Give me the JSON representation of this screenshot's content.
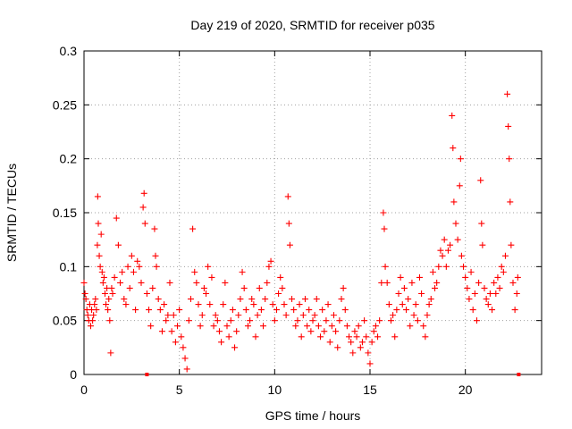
{
  "chart_data": {
    "type": "scatter",
    "title": "Day 219 of 2020, SRMTID for receiver p035",
    "xlabel": "GPS time / hours",
    "ylabel": "SRMTID / TECUs",
    "xlim": [
      0,
      24
    ],
    "ylim": [
      0,
      0.3
    ],
    "x_ticks": [
      0,
      5,
      10,
      15,
      20
    ],
    "y_ticks": [
      0,
      0.05,
      0.1,
      0.15,
      0.2,
      0.25,
      0.3
    ],
    "x_tick_labels": [
      "0",
      "5",
      "10",
      "15",
      "20"
    ],
    "y_tick_labels": [
      "0",
      "0.05",
      "0.1",
      "0.15",
      "0.2",
      "0.25",
      "0.3"
    ],
    "grid": true,
    "marker": "plus",
    "color": "#ff0000",
    "series": [
      {
        "name": "SRMTID",
        "points": [
          [
            0.0,
            0.085
          ],
          [
            0.05,
            0.075
          ],
          [
            0.1,
            0.07
          ],
          [
            0.15,
            0.06
          ],
          [
            0.2,
            0.055
          ],
          [
            0.25,
            0.05
          ],
          [
            0.3,
            0.065
          ],
          [
            0.35,
            0.045
          ],
          [
            0.4,
            0.06
          ],
          [
            0.45,
            0.05
          ],
          [
            0.5,
            0.055
          ],
          [
            0.55,
            0.065
          ],
          [
            0.6,
            0.07
          ],
          [
            0.65,
            0.06
          ],
          [
            0.7,
            0.12
          ],
          [
            0.72,
            0.165
          ],
          [
            0.75,
            0.14
          ],
          [
            0.8,
            0.11
          ],
          [
            0.85,
            0.1
          ],
          [
            0.9,
            0.13
          ],
          [
            0.95,
            0.095
          ],
          [
            1.0,
            0.085
          ],
          [
            1.05,
            0.09
          ],
          [
            1.1,
            0.075
          ],
          [
            1.15,
            0.065
          ],
          [
            1.2,
            0.08
          ],
          [
            1.25,
            0.06
          ],
          [
            1.3,
            0.07
          ],
          [
            1.35,
            0.05
          ],
          [
            1.4,
            0.02
          ],
          [
            1.45,
            0.08
          ],
          [
            1.5,
            0.075
          ],
          [
            1.6,
            0.09
          ],
          [
            1.7,
            0.145
          ],
          [
            1.8,
            0.12
          ],
          [
            1.9,
            0.085
          ],
          [
            2.0,
            0.095
          ],
          [
            2.1,
            0.07
          ],
          [
            2.2,
            0.065
          ],
          [
            2.3,
            0.1
          ],
          [
            2.4,
            0.08
          ],
          [
            2.5,
            0.11
          ],
          [
            2.6,
            0.095
          ],
          [
            2.7,
            0.06
          ],
          [
            2.8,
            0.105
          ],
          [
            2.9,
            0.1
          ],
          [
            3.0,
            0.085
          ],
          [
            3.1,
            0.155
          ],
          [
            3.15,
            0.168
          ],
          [
            3.2,
            0.14
          ],
          [
            3.3,
            0.075
          ],
          [
            3.4,
            0.06
          ],
          [
            3.5,
            0.045
          ],
          [
            3.6,
            0.08
          ],
          [
            3.7,
            0.135
          ],
          [
            3.75,
            0.11
          ],
          [
            3.8,
            0.1
          ],
          [
            3.9,
            0.07
          ],
          [
            4.0,
            0.06
          ],
          [
            4.1,
            0.04
          ],
          [
            4.2,
            0.065
          ],
          [
            4.3,
            0.05
          ],
          [
            4.4,
            0.055
          ],
          [
            4.5,
            0.085
          ],
          [
            4.6,
            0.04
          ],
          [
            4.7,
            0.055
          ],
          [
            4.8,
            0.03
          ],
          [
            4.9,
            0.045
          ],
          [
            5.0,
            0.06
          ],
          [
            5.1,
            0.035
          ],
          [
            5.2,
            0.025
          ],
          [
            5.3,
            0.015
          ],
          [
            5.4,
            0.005
          ],
          [
            5.5,
            0.05
          ],
          [
            5.6,
            0.07
          ],
          [
            5.7,
            0.135
          ],
          [
            5.8,
            0.095
          ],
          [
            5.9,
            0.085
          ],
          [
            6.0,
            0.065
          ],
          [
            6.1,
            0.045
          ],
          [
            6.2,
            0.055
          ],
          [
            6.3,
            0.08
          ],
          [
            6.4,
            0.075
          ],
          [
            6.5,
            0.1
          ],
          [
            6.6,
            0.065
          ],
          [
            6.7,
            0.09
          ],
          [
            6.8,
            0.045
          ],
          [
            6.9,
            0.055
          ],
          [
            7.0,
            0.05
          ],
          [
            7.1,
            0.04
          ],
          [
            7.2,
            0.03
          ],
          [
            7.3,
            0.065
          ],
          [
            7.4,
            0.085
          ],
          [
            7.5,
            0.045
          ],
          [
            7.6,
            0.035
          ],
          [
            7.7,
            0.05
          ],
          [
            7.8,
            0.06
          ],
          [
            7.9,
            0.025
          ],
          [
            8.0,
            0.04
          ],
          [
            8.1,
            0.055
          ],
          [
            8.2,
            0.07
          ],
          [
            8.3,
            0.095
          ],
          [
            8.4,
            0.08
          ],
          [
            8.5,
            0.06
          ],
          [
            8.6,
            0.045
          ],
          [
            8.7,
            0.05
          ],
          [
            8.8,
            0.07
          ],
          [
            8.9,
            0.065
          ],
          [
            9.0,
            0.035
          ],
          [
            9.1,
            0.055
          ],
          [
            9.2,
            0.08
          ],
          [
            9.3,
            0.06
          ],
          [
            9.4,
            0.045
          ],
          [
            9.5,
            0.07
          ],
          [
            9.6,
            0.085
          ],
          [
            9.7,
            0.1
          ],
          [
            9.8,
            0.105
          ],
          [
            9.9,
            0.065
          ],
          [
            10.0,
            0.05
          ],
          [
            10.1,
            0.06
          ],
          [
            10.2,
            0.075
          ],
          [
            10.3,
            0.09
          ],
          [
            10.4,
            0.08
          ],
          [
            10.5,
            0.065
          ],
          [
            10.6,
            0.055
          ],
          [
            10.7,
            0.165
          ],
          [
            10.75,
            0.14
          ],
          [
            10.8,
            0.12
          ],
          [
            10.9,
            0.07
          ],
          [
            11.0,
            0.06
          ],
          [
            11.1,
            0.045
          ],
          [
            11.2,
            0.05
          ],
          [
            11.3,
            0.065
          ],
          [
            11.4,
            0.035
          ],
          [
            11.5,
            0.055
          ],
          [
            11.6,
            0.07
          ],
          [
            11.7,
            0.045
          ],
          [
            11.8,
            0.06
          ],
          [
            11.9,
            0.04
          ],
          [
            12.0,
            0.05
          ],
          [
            12.1,
            0.055
          ],
          [
            12.2,
            0.07
          ],
          [
            12.3,
            0.045
          ],
          [
            12.4,
            0.035
          ],
          [
            12.5,
            0.06
          ],
          [
            12.6,
            0.04
          ],
          [
            12.7,
            0.05
          ],
          [
            12.8,
            0.065
          ],
          [
            12.9,
            0.03
          ],
          [
            13.0,
            0.045
          ],
          [
            13.1,
            0.055
          ],
          [
            13.2,
            0.04
          ],
          [
            13.3,
            0.025
          ],
          [
            13.4,
            0.05
          ],
          [
            13.5,
            0.07
          ],
          [
            13.6,
            0.08
          ],
          [
            13.7,
            0.06
          ],
          [
            13.8,
            0.045
          ],
          [
            13.9,
            0.035
          ],
          [
            14.0,
            0.03
          ],
          [
            14.1,
            0.02
          ],
          [
            14.2,
            0.04
          ],
          [
            14.3,
            0.035
          ],
          [
            14.4,
            0.045
          ],
          [
            14.5,
            0.025
          ],
          [
            14.6,
            0.03
          ],
          [
            14.7,
            0.05
          ],
          [
            14.8,
            0.035
          ],
          [
            14.9,
            0.02
          ],
          [
            15.0,
            0.01
          ],
          [
            15.1,
            0.03
          ],
          [
            15.2,
            0.04
          ],
          [
            15.3,
            0.045
          ],
          [
            15.4,
            0.035
          ],
          [
            15.5,
            0.05
          ],
          [
            15.6,
            0.085
          ],
          [
            15.7,
            0.15
          ],
          [
            15.75,
            0.135
          ],
          [
            15.8,
            0.1
          ],
          [
            15.9,
            0.085
          ],
          [
            16.0,
            0.065
          ],
          [
            16.1,
            0.05
          ],
          [
            16.2,
            0.055
          ],
          [
            16.3,
            0.035
          ],
          [
            16.4,
            0.06
          ],
          [
            16.5,
            0.075
          ],
          [
            16.6,
            0.09
          ],
          [
            16.7,
            0.065
          ],
          [
            16.8,
            0.08
          ],
          [
            16.9,
            0.06
          ],
          [
            17.0,
            0.07
          ],
          [
            17.1,
            0.045
          ],
          [
            17.2,
            0.085
          ],
          [
            17.3,
            0.055
          ],
          [
            17.4,
            0.065
          ],
          [
            17.5,
            0.05
          ],
          [
            17.6,
            0.09
          ],
          [
            17.7,
            0.075
          ],
          [
            17.8,
            0.045
          ],
          [
            17.9,
            0.035
          ],
          [
            18.0,
            0.055
          ],
          [
            18.1,
            0.065
          ],
          [
            18.2,
            0.07
          ],
          [
            18.3,
            0.095
          ],
          [
            18.4,
            0.08
          ],
          [
            18.5,
            0.085
          ],
          [
            18.6,
            0.1
          ],
          [
            18.7,
            0.115
          ],
          [
            18.8,
            0.11
          ],
          [
            18.9,
            0.125
          ],
          [
            19.0,
            0.1
          ],
          [
            19.1,
            0.115
          ],
          [
            19.2,
            0.12
          ],
          [
            19.3,
            0.24
          ],
          [
            19.35,
            0.21
          ],
          [
            19.4,
            0.16
          ],
          [
            19.5,
            0.14
          ],
          [
            19.6,
            0.125
          ],
          [
            19.7,
            0.175
          ],
          [
            19.75,
            0.2
          ],
          [
            19.8,
            0.11
          ],
          [
            19.9,
            0.1
          ],
          [
            20.0,
            0.09
          ],
          [
            20.1,
            0.08
          ],
          [
            20.2,
            0.07
          ],
          [
            20.3,
            0.095
          ],
          [
            20.4,
            0.06
          ],
          [
            20.5,
            0.075
          ],
          [
            20.6,
            0.05
          ],
          [
            20.7,
            0.085
          ],
          [
            20.8,
            0.18
          ],
          [
            20.85,
            0.14
          ],
          [
            20.9,
            0.12
          ],
          [
            21.0,
            0.08
          ],
          [
            21.1,
            0.07
          ],
          [
            21.2,
            0.065
          ],
          [
            21.3,
            0.075
          ],
          [
            21.4,
            0.06
          ],
          [
            21.5,
            0.085
          ],
          [
            21.6,
            0.075
          ],
          [
            21.7,
            0.09
          ],
          [
            21.8,
            0.08
          ],
          [
            21.9,
            0.1
          ],
          [
            22.0,
            0.095
          ],
          [
            22.1,
            0.11
          ],
          [
            22.2,
            0.26
          ],
          [
            22.25,
            0.23
          ],
          [
            22.3,
            0.2
          ],
          [
            22.35,
            0.16
          ],
          [
            22.4,
            0.12
          ],
          [
            22.5,
            0.085
          ],
          [
            22.6,
            0.06
          ],
          [
            22.7,
            0.075
          ],
          [
            22.75,
            0.09
          ]
        ]
      }
    ],
    "zero_markers": [
      [
        3.3,
        0
      ],
      [
        22.8,
        0
      ]
    ]
  }
}
